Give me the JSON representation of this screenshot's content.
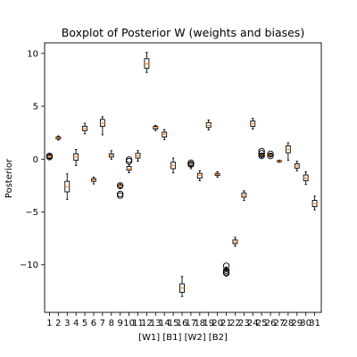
{
  "chart_data": {
    "type": "box",
    "title": "Boxplot of Posterior W (weights and biases)",
    "xlabel": "[W1] [B1] [W2] [B2]",
    "ylabel": "Posterior",
    "ylim": [
      -14.5,
      11.0
    ],
    "yticks": [
      10,
      5,
      0,
      -5,
      -10
    ],
    "ytick_labels": [
      "10",
      "5",
      "0",
      "−5",
      "−10"
    ],
    "categories": [
      "1",
      "2",
      "3",
      "4",
      "5",
      "6",
      "7",
      "8",
      "9",
      "10",
      "11",
      "12",
      "13",
      "14",
      "15",
      "16",
      "17",
      "18",
      "19",
      "20",
      "21",
      "22",
      "23",
      "24",
      "25",
      "26",
      "27",
      "28",
      "29",
      "30",
      "31"
    ],
    "boxes": [
      {
        "q1": 0.1,
        "median": 0.2,
        "q3": 0.35,
        "whislo": -0.05,
        "whishi": 0.45,
        "fliers": [
          0.2,
          0.3
        ]
      },
      {
        "q1": 1.9,
        "median": 2.0,
        "q3": 2.1,
        "whislo": 1.8,
        "whishi": 2.2,
        "fliers": []
      },
      {
        "q1": -3.1,
        "median": -2.6,
        "q3": -2.1,
        "whislo": -3.8,
        "whishi": -1.4,
        "fliers": []
      },
      {
        "q1": -0.1,
        "median": 0.2,
        "q3": 0.5,
        "whislo": -0.6,
        "whishi": 0.9,
        "fliers": []
      },
      {
        "q1": 2.7,
        "median": 2.9,
        "q3": 3.1,
        "whislo": 2.4,
        "whishi": 3.4,
        "fliers": []
      },
      {
        "q1": -2.1,
        "median": -1.95,
        "q3": -1.85,
        "whislo": -2.35,
        "whishi": -1.7,
        "fliers": []
      },
      {
        "q1": 3.1,
        "median": 3.4,
        "q3": 3.75,
        "whislo": 2.3,
        "whishi": 4.0,
        "fliers": []
      },
      {
        "q1": 0.2,
        "median": 0.35,
        "q3": 0.5,
        "whislo": 0.0,
        "whishi": 0.8,
        "fliers": []
      },
      {
        "q1": -2.7,
        "median": -2.6,
        "q3": -2.45,
        "whislo": -2.8,
        "whishi": -2.35,
        "fliers": [
          -2.5,
          -3.3,
          -3.45
        ]
      },
      {
        "q1": -1.05,
        "median": -0.9,
        "q3": -0.7,
        "whislo": -1.3,
        "whishi": -0.5,
        "fliers": [
          -0.2,
          -0.05
        ]
      },
      {
        "q1": 0.1,
        "median": 0.3,
        "q3": 0.55,
        "whislo": -0.2,
        "whishi": 0.8,
        "fliers": []
      },
      {
        "q1": 8.6,
        "median": 9.0,
        "q3": 9.5,
        "whislo": 8.2,
        "whishi": 10.1,
        "fliers": []
      },
      {
        "q1": 2.85,
        "median": 3.0,
        "q3": 3.1,
        "whislo": 2.7,
        "whishi": 3.2,
        "fliers": []
      },
      {
        "q1": 2.1,
        "median": 2.35,
        "q3": 2.55,
        "whislo": 1.85,
        "whishi": 2.8,
        "fliers": []
      },
      {
        "q1": -0.9,
        "median": -0.6,
        "q3": -0.3,
        "whislo": -1.3,
        "whishi": 0.1,
        "fliers": []
      },
      {
        "q1": -12.6,
        "median": -12.2,
        "q3": -11.8,
        "whislo": -13.0,
        "whishi": -11.1,
        "fliers": []
      },
      {
        "q1": -0.7,
        "median": -0.55,
        "q3": -0.4,
        "whislo": -0.9,
        "whishi": -0.25,
        "fliers": [
          -0.35,
          -0.5
        ]
      },
      {
        "q1": -1.8,
        "median": -1.55,
        "q3": -1.35,
        "whislo": -2.05,
        "whishi": -1.1,
        "fliers": []
      },
      {
        "q1": 3.0,
        "median": 3.2,
        "q3": 3.45,
        "whislo": 2.75,
        "whishi": 3.7,
        "fliers": []
      },
      {
        "q1": -1.55,
        "median": -1.45,
        "q3": -1.35,
        "whislo": -1.7,
        "whishi": -1.2,
        "fliers": []
      },
      {
        "q1": -10.55,
        "median": -10.45,
        "q3": -10.35,
        "whislo": -10.65,
        "whishi": -10.2,
        "fliers": [
          -10.55,
          -10.7,
          -10.8,
          -10.1
        ]
      },
      {
        "q1": -8.0,
        "median": -7.85,
        "q3": -7.65,
        "whislo": -8.25,
        "whishi": -7.4,
        "fliers": []
      },
      {
        "q1": -3.6,
        "median": -3.4,
        "q3": -3.2,
        "whislo": -3.9,
        "whishi": -3.0,
        "fliers": []
      },
      {
        "q1": 3.1,
        "median": 3.35,
        "q3": 3.6,
        "whislo": 2.85,
        "whishi": 3.85,
        "fliers": []
      },
      {
        "q1": 0.25,
        "median": 0.35,
        "q3": 0.45,
        "whislo": 0.15,
        "whishi": 0.55,
        "fliers": [
          0.3,
          0.55,
          0.75
        ]
      },
      {
        "q1": 0.3,
        "median": 0.38,
        "q3": 0.45,
        "whislo": 0.2,
        "whishi": 0.55,
        "fliers": [
          0.3,
          0.5
        ]
      },
      {
        "q1": -0.25,
        "median": -0.2,
        "q3": -0.15,
        "whislo": -0.3,
        "whishi": -0.1,
        "fliers": []
      },
      {
        "q1": 0.6,
        "median": 0.9,
        "q3": 1.25,
        "whislo": -0.1,
        "whishi": 1.55,
        "fliers": []
      },
      {
        "q1": -0.85,
        "median": -0.65,
        "q3": -0.45,
        "whislo": -1.1,
        "whishi": -0.2,
        "fliers": []
      },
      {
        "q1": -2.05,
        "median": -1.8,
        "q3": -1.5,
        "whislo": -2.4,
        "whishi": -1.2,
        "fliers": []
      },
      {
        "q1": -4.5,
        "median": -4.2,
        "q3": -3.9,
        "whislo": -4.8,
        "whishi": -3.5,
        "fliers": []
      }
    ],
    "colors": {
      "median": "#ff7f0e",
      "box": "#000000"
    }
  }
}
